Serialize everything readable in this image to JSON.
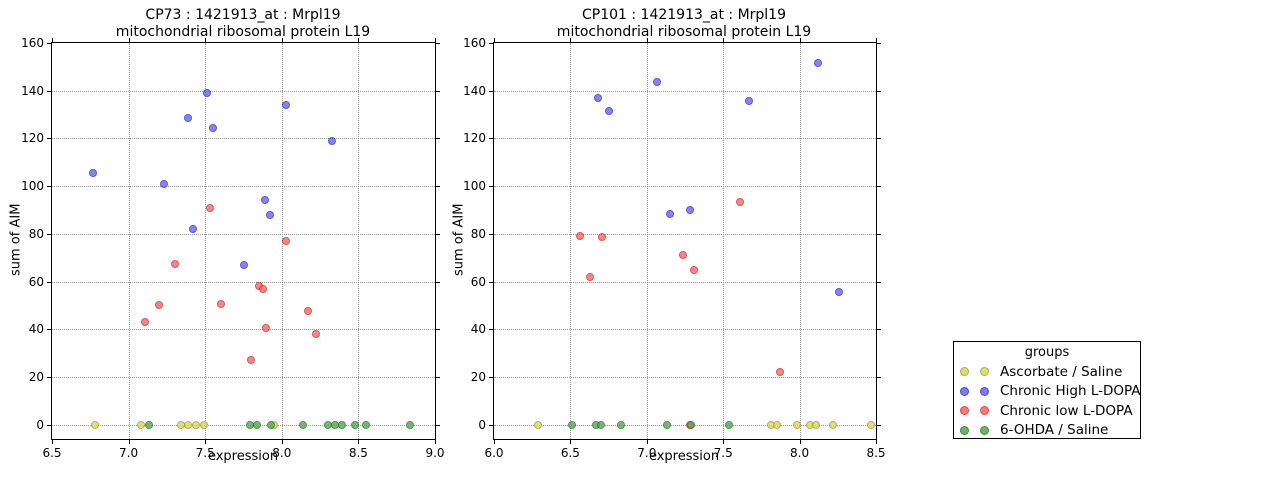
{
  "legend": {
    "title": "groups",
    "items": [
      {
        "label": "Ascorbate / Saline",
        "color": "#d8d85f",
        "edge": "#9f9f26"
      },
      {
        "label": "Chronic High L-DOPA",
        "color": "#6363ef",
        "edge": "#2a2ad0"
      },
      {
        "label": "Chronic low L-DOPA",
        "color": "#f76363",
        "edge": "#d02a2a"
      },
      {
        "label": "6-OHDA / Saline",
        "color": "#54a554",
        "edge": "#1f7a1f"
      }
    ]
  },
  "chart_data": [
    {
      "type": "scatter",
      "title_line1": "CP73 : 1421913_at : Mrpl19",
      "title_line2": "mitochondrial ribosomal protein L19",
      "xlabel": "expression",
      "ylabel": "sum of AIM",
      "xlim": [
        6.5,
        9.0
      ],
      "ylim": [
        -6,
        160
      ],
      "grid": true,
      "legend_position": "outside-right",
      "xticks": [
        "6.5",
        "7.0",
        "7.5",
        "8.0",
        "8.5",
        "9.0"
      ],
      "yticks": [
        "0",
        "20",
        "40",
        "60",
        "80",
        "100",
        "120",
        "140",
        "160"
      ],
      "series": [
        {
          "name": "Ascorbate / Saline",
          "color": "#d8d85f",
          "edge": "#9f9f26",
          "points": [
            [
              6.78,
              0
            ],
            [
              7.08,
              0
            ],
            [
              7.34,
              0
            ],
            [
              7.39,
              0
            ],
            [
              7.44,
              0
            ],
            [
              7.49,
              0
            ],
            [
              7.95,
              0
            ]
          ]
        },
        {
          "name": "Chronic High L-DOPA",
          "color": "#6363ef",
          "edge": "#2a2ad0",
          "points": [
            [
              6.77,
              105.5
            ],
            [
              7.23,
              101
            ],
            [
              7.39,
              128.5
            ],
            [
              7.42,
              82
            ],
            [
              7.51,
              139
            ],
            [
              7.55,
              124.5
            ],
            [
              7.75,
              67
            ],
            [
              7.89,
              94
            ],
            [
              7.92,
              88
            ],
            [
              8.03,
              134
            ],
            [
              8.33,
              119
            ]
          ]
        },
        {
          "name": "Chronic low L-DOPA",
          "color": "#f76363",
          "edge": "#d02a2a",
          "points": [
            [
              7.11,
              43
            ],
            [
              7.2,
              50
            ],
            [
              7.3,
              67.5
            ],
            [
              7.53,
              91
            ],
            [
              7.6,
              50.5
            ],
            [
              7.8,
              27
            ],
            [
              7.85,
              58
            ],
            [
              7.88,
              57
            ],
            [
              7.9,
              40.5
            ],
            [
              8.03,
              77
            ],
            [
              8.17,
              47.5
            ],
            [
              8.22,
              38
            ]
          ]
        },
        {
          "name": "6-OHDA / Saline",
          "color": "#54a554",
          "edge": "#1f7a1f",
          "points": [
            [
              7.13,
              0
            ],
            [
              7.79,
              0
            ],
            [
              7.84,
              0
            ],
            [
              7.93,
              0
            ],
            [
              8.14,
              0
            ],
            [
              8.3,
              0
            ],
            [
              8.35,
              0
            ],
            [
              8.39,
              0
            ],
            [
              8.48,
              0
            ],
            [
              8.55,
              0
            ],
            [
              8.84,
              0
            ]
          ]
        }
      ]
    },
    {
      "type": "scatter",
      "title_line1": "CP101 : 1421913_at : Mrpl19",
      "title_line2": "mitochondrial ribosomal protein L19",
      "xlabel": "expression",
      "ylabel": "sum of AIM",
      "xlim": [
        6.0,
        8.5
      ],
      "ylim": [
        -6,
        160
      ],
      "grid": true,
      "legend_position": "outside-right",
      "xticks": [
        "6.0",
        "6.5",
        "7.0",
        "7.5",
        "8.0",
        "8.5"
      ],
      "yticks": [
        "0",
        "20",
        "40",
        "60",
        "80",
        "100",
        "120",
        "140",
        "160"
      ],
      "series": [
        {
          "name": "Ascorbate / Saline",
          "color": "#d8d85f",
          "edge": "#9f9f26",
          "points": [
            [
              6.29,
              0
            ],
            [
              7.81,
              0
            ],
            [
              7.85,
              0
            ],
            [
              7.98,
              0
            ],
            [
              8.07,
              0
            ],
            [
              8.11,
              0
            ],
            [
              8.22,
              0
            ],
            [
              8.47,
              0
            ]
          ]
        },
        {
          "name": "Chronic High L-DOPA",
          "color": "#6363ef",
          "edge": "#2a2ad0",
          "points": [
            [
              6.68,
              137
            ],
            [
              6.75,
              131.5
            ],
            [
              7.07,
              143.5
            ],
            [
              7.15,
              88.5
            ],
            [
              7.28,
              90
            ],
            [
              7.67,
              135.5
            ],
            [
              8.12,
              151.5
            ],
            [
              8.26,
              55.5
            ]
          ]
        },
        {
          "name": "Chronic low L-DOPA",
          "color": "#f76363",
          "edge": "#d02a2a",
          "points": [
            [
              6.56,
              79
            ],
            [
              6.63,
              62
            ],
            [
              6.71,
              78.5
            ],
            [
              7.24,
              71
            ],
            [
              7.28,
              0
            ],
            [
              7.31,
              65
            ],
            [
              7.61,
              93.5
            ],
            [
              7.87,
              22
            ]
          ]
        },
        {
          "name": "6-OHDA / Saline",
          "color": "#54a554",
          "edge": "#1f7a1f",
          "points": [
            [
              6.51,
              0
            ],
            [
              6.67,
              0
            ],
            [
              6.7,
              0
            ],
            [
              6.83,
              0
            ],
            [
              7.13,
              0
            ],
            [
              7.29,
              0
            ],
            [
              7.54,
              0
            ]
          ]
        }
      ]
    }
  ]
}
